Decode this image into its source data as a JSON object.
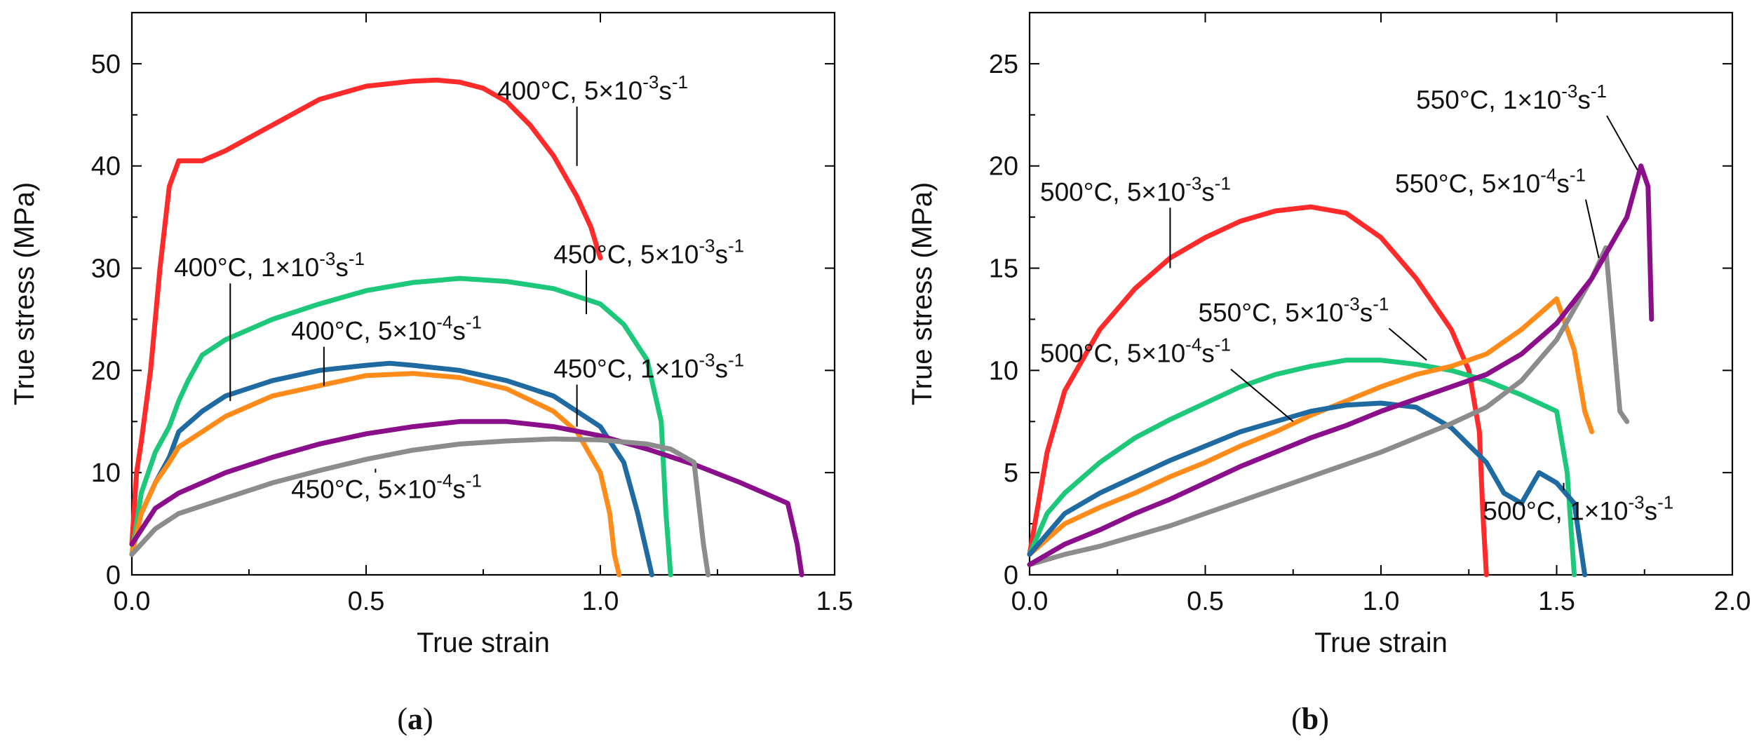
{
  "chart_data": [
    {
      "type": "line",
      "panel": "a",
      "panel_label": "(a)",
      "xlabel": "True strain",
      "ylabel": "True stress (MPa)",
      "xlim": [
        0.0,
        1.5
      ],
      "ylim": [
        0,
        55
      ],
      "xticks": [
        0.0,
        0.5,
        1.0,
        1.5
      ],
      "yticks": [
        0,
        10,
        20,
        30,
        40,
        50
      ],
      "xtick_labels": [
        "0.0",
        "0.5",
        "1.0",
        "1.5"
      ],
      "ytick_labels": [
        "0",
        "10",
        "20",
        "30",
        "40",
        "50"
      ],
      "series": [
        {
          "name": "400°C, 5×10⁻³s⁻¹",
          "temp": "400°C",
          "rate": "5×10",
          "exp": "-3",
          "color": "#ff2a2a",
          "x": [
            0.0,
            0.01,
            0.02,
            0.04,
            0.06,
            0.08,
            0.1,
            0.15,
            0.2,
            0.3,
            0.4,
            0.5,
            0.6,
            0.65,
            0.7,
            0.75,
            0.8,
            0.85,
            0.9,
            0.95,
            0.98,
            1.0
          ],
          "y": [
            3,
            10,
            13,
            20,
            30,
            38,
            40.5,
            40.5,
            41.5,
            44,
            46.5,
            47.8,
            48.3,
            48.4,
            48.2,
            47.6,
            46.3,
            44,
            41,
            37,
            34,
            31
          ],
          "label_pos": [
            0.78,
            46.5
          ],
          "anchor": [
            0.95,
            40
          ]
        },
        {
          "name": "450°C, 5×10⁻³s⁻¹",
          "temp": "450°C",
          "rate": "5×10",
          "exp": "-3",
          "color": "#1ec87a",
          "x": [
            0.0,
            0.02,
            0.05,
            0.08,
            0.1,
            0.12,
            0.15,
            0.2,
            0.3,
            0.4,
            0.5,
            0.6,
            0.7,
            0.8,
            0.9,
            1.0,
            1.05,
            1.1,
            1.13,
            1.14,
            1.15
          ],
          "y": [
            2,
            8,
            12,
            14.5,
            17,
            19,
            21.5,
            23,
            25,
            26.5,
            27.8,
            28.6,
            29,
            28.7,
            28,
            26.5,
            24.5,
            21,
            15,
            6,
            0
          ],
          "label_pos": [
            0.9,
            30.5
          ],
          "anchor": [
            0.97,
            25.5
          ]
        },
        {
          "name": "400°C, 1×10⁻³s⁻¹",
          "temp": "400°C",
          "rate": "1×10",
          "exp": "-3",
          "color": "#1f6aa0",
          "x": [
            0.0,
            0.02,
            0.05,
            0.08,
            0.1,
            0.15,
            0.2,
            0.3,
            0.4,
            0.5,
            0.55,
            0.6,
            0.7,
            0.8,
            0.9,
            1.0,
            1.05,
            1.08,
            1.1,
            1.11
          ],
          "y": [
            2,
            6,
            9,
            11.5,
            14,
            16,
            17.5,
            19,
            20,
            20.5,
            20.7,
            20.5,
            20,
            19,
            17.5,
            14.5,
            11,
            6,
            2,
            0
          ],
          "label_pos": [
            0.09,
            29.2
          ],
          "anchor": [
            0.21,
            17
          ]
        },
        {
          "name": "400°C, 5×10⁻⁴s⁻¹",
          "temp": "400°C",
          "rate": "5×10",
          "exp": "-4",
          "color": "#ff8c1a",
          "x": [
            0.0,
            0.02,
            0.05,
            0.08,
            0.1,
            0.15,
            0.2,
            0.3,
            0.4,
            0.5,
            0.6,
            0.7,
            0.8,
            0.9,
            0.95,
            1.0,
            1.02,
            1.03,
            1.04
          ],
          "y": [
            2,
            6,
            9,
            11,
            12.5,
            14,
            15.5,
            17.5,
            18.5,
            19.5,
            19.7,
            19.3,
            18.2,
            16,
            14,
            10,
            6,
            2,
            0
          ],
          "label_pos": [
            0.34,
            23
          ],
          "anchor": [
            0.41,
            18.5
          ]
        },
        {
          "name": "450°C, 1×10⁻³s⁻¹",
          "temp": "450°C",
          "rate": "1×10",
          "exp": "-3",
          "color": "#8b0f8b",
          "x": [
            0.0,
            0.05,
            0.1,
            0.2,
            0.3,
            0.4,
            0.5,
            0.6,
            0.7,
            0.8,
            0.9,
            1.0,
            1.1,
            1.2,
            1.3,
            1.35,
            1.4,
            1.42,
            1.43
          ],
          "y": [
            3,
            6.5,
            8,
            10,
            11.5,
            12.8,
            13.8,
            14.5,
            15,
            15,
            14.5,
            13.6,
            12.3,
            10.8,
            9,
            8,
            7,
            3,
            0
          ],
          "label_pos": [
            0.9,
            19.3
          ],
          "anchor": [
            0.95,
            14.5
          ]
        },
        {
          "name": "450°C, 5×10⁻⁴s⁻¹",
          "temp": "450°C",
          "rate": "5×10",
          "exp": "-4",
          "color": "#8c8c8c",
          "x": [
            0.0,
            0.05,
            0.1,
            0.2,
            0.3,
            0.4,
            0.5,
            0.6,
            0.7,
            0.8,
            0.9,
            1.0,
            1.1,
            1.15,
            1.2,
            1.21,
            1.22,
            1.23
          ],
          "y": [
            2,
            4.5,
            6,
            7.5,
            9,
            10.2,
            11.3,
            12.2,
            12.8,
            13.1,
            13.3,
            13.2,
            12.8,
            12.3,
            11,
            7,
            3,
            0
          ],
          "label_pos": [
            0.34,
            7.5
          ],
          "anchor": [
            0.52,
            10
          ]
        }
      ]
    },
    {
      "type": "line",
      "panel": "b",
      "panel_label": "(b)",
      "xlabel": "True strain",
      "ylabel": "True stress (MPa)",
      "xlim": [
        0.0,
        2.0
      ],
      "ylim": [
        0,
        27.5
      ],
      "xticks": [
        0.0,
        0.5,
        1.0,
        1.5,
        2.0
      ],
      "yticks": [
        0,
        5,
        10,
        15,
        20,
        25
      ],
      "xtick_labels": [
        "0.0",
        "0.5",
        "1.0",
        "1.5",
        "2.0"
      ],
      "ytick_labels": [
        "0",
        "5",
        "10",
        "15",
        "20",
        "25"
      ],
      "series": [
        {
          "name": "500°C, 5×10⁻³s⁻¹",
          "temp": "500°C",
          "rate": "5×10",
          "exp": "-3",
          "color": "#ff2a2a",
          "x": [
            0.0,
            0.02,
            0.05,
            0.1,
            0.2,
            0.3,
            0.4,
            0.5,
            0.6,
            0.7,
            0.8,
            0.9,
            1.0,
            1.1,
            1.2,
            1.25,
            1.28,
            1.29,
            1.3
          ],
          "y": [
            1,
            3,
            6,
            9,
            12,
            14,
            15.5,
            16.5,
            17.3,
            17.8,
            18,
            17.7,
            16.5,
            14.5,
            12,
            10,
            7,
            3,
            0
          ],
          "label_pos": [
            0.03,
            18.3
          ],
          "anchor": [
            0.4,
            15
          ]
        },
        {
          "name": "550°C, 5×10⁻³s⁻¹",
          "temp": "550°C",
          "rate": "5×10",
          "exp": "-3",
          "color": "#1ec87a",
          "x": [
            0.0,
            0.05,
            0.1,
            0.2,
            0.3,
            0.4,
            0.5,
            0.6,
            0.7,
            0.8,
            0.9,
            1.0,
            1.1,
            1.2,
            1.3,
            1.4,
            1.5,
            1.53,
            1.55
          ],
          "y": [
            1,
            3,
            4,
            5.5,
            6.7,
            7.6,
            8.4,
            9.2,
            9.8,
            10.2,
            10.5,
            10.5,
            10.3,
            10,
            9.5,
            8.8,
            8,
            5,
            0
          ],
          "label_pos": [
            0.48,
            12.4
          ],
          "anchor": [
            1.13,
            10.5
          ]
        },
        {
          "name": "500°C, 5×10⁻⁴s⁻¹",
          "temp": "500°C",
          "rate": "5×10",
          "exp": "-4",
          "color": "#ff8c1a",
          "x": [
            0.0,
            0.1,
            0.2,
            0.3,
            0.4,
            0.5,
            0.6,
            0.7,
            0.8,
            0.9,
            1.0,
            1.1,
            1.2,
            1.3,
            1.4,
            1.5,
            1.55,
            1.58,
            1.6
          ],
          "y": [
            1,
            2.5,
            3.3,
            4,
            4.8,
            5.5,
            6.3,
            7,
            7.8,
            8.5,
            9.2,
            9.8,
            10.2,
            10.8,
            12,
            13.5,
            11,
            8,
            7
          ],
          "label_pos": [
            0.03,
            10.4
          ],
          "anchor": [
            0.75,
            7.5
          ]
        },
        {
          "name": "500°C, 1×10⁻³s⁻¹",
          "temp": "500°C",
          "rate": "1×10",
          "exp": "-3",
          "color": "#1f6aa0",
          "x": [
            0.0,
            0.1,
            0.2,
            0.3,
            0.4,
            0.5,
            0.6,
            0.7,
            0.8,
            0.9,
            1.0,
            1.1,
            1.2,
            1.3,
            1.35,
            1.4,
            1.45,
            1.5,
            1.55,
            1.58
          ],
          "y": [
            1,
            3,
            4,
            4.8,
            5.6,
            6.3,
            7,
            7.5,
            8,
            8.3,
            8.4,
            8.2,
            7.2,
            5.5,
            4,
            3.5,
            5,
            4.5,
            3.5,
            0
          ],
          "label_pos": [
            1.29,
            2.7
          ],
          "anchor": [
            1.52,
            4.5
          ]
        },
        {
          "name": "550°C, 5×10⁻⁴s⁻¹",
          "temp": "550°C",
          "rate": "5×10",
          "exp": "-4",
          "color": "#8c8c8c",
          "x": [
            0.0,
            0.1,
            0.2,
            0.3,
            0.4,
            0.5,
            0.6,
            0.7,
            0.8,
            0.9,
            1.0,
            1.1,
            1.2,
            1.3,
            1.4,
            1.5,
            1.6,
            1.64,
            1.66,
            1.68,
            1.7
          ],
          "y": [
            0.5,
            1,
            1.4,
            1.9,
            2.4,
            3,
            3.6,
            4.2,
            4.8,
            5.4,
            6,
            6.7,
            7.4,
            8.2,
            9.5,
            11.5,
            14.5,
            16,
            12,
            8,
            7.5
          ],
          "label_pos": [
            1.04,
            18.7
          ],
          "anchor": [
            1.62,
            15.5
          ]
        },
        {
          "name": "550°C, 1×10⁻³s⁻¹",
          "temp": "550°C",
          "rate": "1×10",
          "exp": "-3",
          "color": "#8b0f8b",
          "x": [
            0.0,
            0.1,
            0.2,
            0.3,
            0.4,
            0.5,
            0.6,
            0.7,
            0.8,
            0.9,
            1.0,
            1.1,
            1.2,
            1.3,
            1.4,
            1.5,
            1.6,
            1.7,
            1.74,
            1.76,
            1.77
          ],
          "y": [
            0.5,
            1.5,
            2.2,
            3,
            3.7,
            4.5,
            5.3,
            6,
            6.7,
            7.3,
            8,
            8.6,
            9.2,
            9.8,
            10.8,
            12.3,
            14.5,
            17.5,
            20,
            19,
            12.5
          ],
          "label_pos": [
            1.1,
            22.8
          ],
          "anchor": [
            1.73,
            19.8
          ]
        }
      ]
    }
  ]
}
